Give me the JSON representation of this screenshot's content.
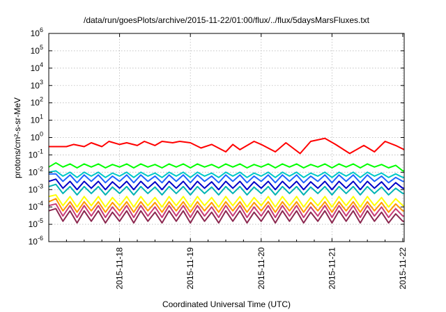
{
  "chart_data": {
    "type": "line",
    "title": "/data/run/goesPlots/archive/2015-11-22/01:00/flux/../flux/5daysMarsFluxes.txt",
    "xlabel": "Coordinated Universal Time (UTC)",
    "ylabel": "protons/cm²-s-sr-MeV",
    "y_scale": "log",
    "ylim": [
      1e-06,
      1000000.0
    ],
    "xlim": [
      "2015-11-17 00:00",
      "2015-11-22 00:30"
    ],
    "grid": true,
    "legend": "none",
    "y_ticks": [
      {
        "value": 1e-06,
        "base": "10",
        "exp": "-6"
      },
      {
        "value": 1e-05,
        "base": "10",
        "exp": "-5"
      },
      {
        "value": 0.0001,
        "base": "10",
        "exp": "-4"
      },
      {
        "value": 0.001,
        "base": "10",
        "exp": "-3"
      },
      {
        "value": 0.01,
        "base": "10",
        "exp": "-2"
      },
      {
        "value": 0.1,
        "base": "10",
        "exp": "-1"
      },
      {
        "value": 1.0,
        "base": "10",
        "exp": "0"
      },
      {
        "value": 10.0,
        "base": "10",
        "exp": "1"
      },
      {
        "value": 100.0,
        "base": "10",
        "exp": "2"
      },
      {
        "value": 1000.0,
        "base": "10",
        "exp": "3"
      },
      {
        "value": 10000.0,
        "base": "10",
        "exp": "4"
      },
      {
        "value": 100000.0,
        "base": "10",
        "exp": "5"
      },
      {
        "value": 1000000.0,
        "base": "10",
        "exp": "6"
      }
    ],
    "x_ticks": [
      {
        "label": "2015-11-18",
        "day": 1
      },
      {
        "label": "2015-11-19",
        "day": 2
      },
      {
        "label": "2015-11-20",
        "day": 3
      },
      {
        "label": "2015-11-21",
        "day": 4
      },
      {
        "label": "2015-11-22",
        "day": 5
      }
    ],
    "series": [
      {
        "color": "#ff0000",
        "x": [
          0,
          0.25,
          0.35,
          0.5,
          0.6,
          0.75,
          0.85,
          1.0,
          1.1,
          1.25,
          1.35,
          1.5,
          1.6,
          1.75,
          1.85,
          2.0,
          2.15,
          2.3,
          2.5,
          2.6,
          2.7,
          2.9,
          3.0,
          3.2,
          3.35,
          3.55,
          3.7,
          3.9,
          4.05,
          4.25,
          4.45,
          4.6,
          4.75,
          4.9,
          5.05
        ],
        "y": [
          0.3,
          0.3,
          0.4,
          0.3,
          0.5,
          0.3,
          0.6,
          0.4,
          0.5,
          0.35,
          0.6,
          0.35,
          0.6,
          0.5,
          0.6,
          0.5,
          0.25,
          0.4,
          0.15,
          0.4,
          0.2,
          0.6,
          0.4,
          0.15,
          0.5,
          0.12,
          0.6,
          0.9,
          0.4,
          0.12,
          0.35,
          0.15,
          0.6,
          0.35,
          0.2
        ]
      },
      {
        "color": "#00ff00",
        "x": [
          0,
          0.1,
          0.2,
          0.3,
          0.4,
          0.5,
          0.6,
          0.7,
          0.8,
          0.9,
          1.0,
          1.1,
          1.2,
          1.3,
          1.4,
          1.5,
          1.6,
          1.7,
          1.8,
          1.9,
          2.0,
          2.1,
          2.2,
          2.3,
          2.4,
          2.5,
          2.6,
          2.7,
          2.8,
          2.9,
          3.0,
          3.1,
          3.2,
          3.3,
          3.4,
          3.5,
          3.6,
          3.7,
          3.8,
          3.9,
          4.0,
          4.1,
          4.2,
          4.3,
          4.4,
          4.5,
          4.6,
          4.7,
          4.8,
          4.9,
          5.0,
          5.05
        ],
        "y": [
          0.02,
          0.035,
          0.02,
          0.03,
          0.018,
          0.03,
          0.02,
          0.03,
          0.018,
          0.028,
          0.02,
          0.03,
          0.018,
          0.03,
          0.02,
          0.028,
          0.018,
          0.03,
          0.02,
          0.03,
          0.018,
          0.03,
          0.02,
          0.028,
          0.018,
          0.03,
          0.02,
          0.03,
          0.018,
          0.028,
          0.02,
          0.03,
          0.018,
          0.03,
          0.02,
          0.03,
          0.018,
          0.028,
          0.02,
          0.03,
          0.018,
          0.03,
          0.02,
          0.03,
          0.018,
          0.03,
          0.02,
          0.028,
          0.018,
          0.025,
          0.012,
          0.012
        ]
      },
      {
        "color": "#00c8c8",
        "x": [
          0,
          0.1,
          0.2,
          0.3,
          0.4,
          0.5,
          0.6,
          0.7,
          0.8,
          0.9,
          1.0,
          1.1,
          1.2,
          1.3,
          1.4,
          1.5,
          1.6,
          1.7,
          1.8,
          1.9,
          2.0,
          2.1,
          2.2,
          2.3,
          2.4,
          2.5,
          2.6,
          2.7,
          2.8,
          2.9,
          3.0,
          3.1,
          3.2,
          3.3,
          3.4,
          3.5,
          3.6,
          3.7,
          3.8,
          3.9,
          4.0,
          4.1,
          4.2,
          4.3,
          4.4,
          4.5,
          4.6,
          4.7,
          4.8,
          4.9,
          5.0,
          5.05
        ],
        "y": [
          0.01,
          0.012,
          0.006,
          0.01,
          0.005,
          0.01,
          0.006,
          0.01,
          0.005,
          0.009,
          0.006,
          0.01,
          0.005,
          0.01,
          0.006,
          0.009,
          0.005,
          0.01,
          0.006,
          0.01,
          0.005,
          0.01,
          0.006,
          0.009,
          0.005,
          0.01,
          0.006,
          0.01,
          0.005,
          0.009,
          0.006,
          0.01,
          0.005,
          0.01,
          0.006,
          0.01,
          0.005,
          0.009,
          0.006,
          0.01,
          0.005,
          0.01,
          0.006,
          0.01,
          0.005,
          0.01,
          0.006,
          0.009,
          0.005,
          0.008,
          0.005,
          0.005
        ]
      },
      {
        "color": "#1e64ff",
        "x": [
          0,
          0.1,
          0.2,
          0.3,
          0.4,
          0.5,
          0.6,
          0.7,
          0.8,
          0.9,
          1.0,
          1.1,
          1.2,
          1.3,
          1.4,
          1.5,
          1.6,
          1.7,
          1.8,
          1.9,
          2.0,
          2.1,
          2.2,
          2.3,
          2.4,
          2.5,
          2.6,
          2.7,
          2.8,
          2.9,
          3.0,
          3.1,
          3.2,
          3.3,
          3.4,
          3.5,
          3.6,
          3.7,
          3.8,
          3.9,
          4.0,
          4.1,
          4.2,
          4.3,
          4.4,
          4.5,
          4.6,
          4.7,
          4.8,
          4.9,
          5.0,
          5.05
        ],
        "y": [
          0.008,
          0.008,
          0.003,
          0.007,
          0.0025,
          0.007,
          0.003,
          0.007,
          0.0025,
          0.006,
          0.003,
          0.007,
          0.0025,
          0.007,
          0.003,
          0.006,
          0.0025,
          0.007,
          0.003,
          0.007,
          0.0025,
          0.007,
          0.003,
          0.006,
          0.0025,
          0.007,
          0.003,
          0.007,
          0.0025,
          0.006,
          0.003,
          0.007,
          0.0025,
          0.007,
          0.003,
          0.007,
          0.0025,
          0.006,
          0.003,
          0.007,
          0.0025,
          0.007,
          0.003,
          0.007,
          0.0025,
          0.007,
          0.003,
          0.006,
          0.0025,
          0.005,
          0.003,
          0.003
        ]
      },
      {
        "color": "#0000c8",
        "x": [
          0,
          0.1,
          0.2,
          0.3,
          0.4,
          0.5,
          0.6,
          0.7,
          0.8,
          0.9,
          1.0,
          1.1,
          1.2,
          1.3,
          1.4,
          1.5,
          1.6,
          1.7,
          1.8,
          1.9,
          2.0,
          2.1,
          2.2,
          2.3,
          2.4,
          2.5,
          2.6,
          2.7,
          2.8,
          2.9,
          3.0,
          3.1,
          3.2,
          3.3,
          3.4,
          3.5,
          3.6,
          3.7,
          3.8,
          3.9,
          4.0,
          4.1,
          4.2,
          4.3,
          4.4,
          4.5,
          4.6,
          4.7,
          4.8,
          4.9,
          5.0,
          5.05
        ],
        "y": [
          0.003,
          0.004,
          0.0012,
          0.003,
          0.001,
          0.003,
          0.0012,
          0.003,
          0.001,
          0.0028,
          0.0012,
          0.003,
          0.001,
          0.003,
          0.0012,
          0.0028,
          0.001,
          0.003,
          0.0012,
          0.003,
          0.001,
          0.003,
          0.0012,
          0.0028,
          0.001,
          0.003,
          0.0012,
          0.003,
          0.001,
          0.0028,
          0.0012,
          0.003,
          0.001,
          0.003,
          0.0012,
          0.003,
          0.001,
          0.0028,
          0.0012,
          0.003,
          0.001,
          0.003,
          0.0012,
          0.003,
          0.001,
          0.003,
          0.0012,
          0.0028,
          0.001,
          0.0025,
          0.0012,
          0.0012
        ]
      },
      {
        "color": "#00b4b4",
        "x": [
          0,
          0.1,
          0.2,
          0.3,
          0.4,
          0.5,
          0.6,
          0.7,
          0.8,
          0.9,
          1.0,
          1.1,
          1.2,
          1.3,
          1.4,
          1.5,
          1.6,
          1.7,
          1.8,
          1.9,
          2.0,
          2.1,
          2.2,
          2.3,
          2.4,
          2.5,
          2.6,
          2.7,
          2.8,
          2.9,
          3.0,
          3.1,
          3.2,
          3.3,
          3.4,
          3.5,
          3.6,
          3.7,
          3.8,
          3.9,
          4.0,
          4.1,
          4.2,
          4.3,
          4.4,
          4.5,
          4.6,
          4.7,
          4.8,
          4.9,
          5.0,
          5.05
        ],
        "y": [
          0.0015,
          0.002,
          0.0006,
          0.0015,
          0.0005,
          0.0015,
          0.0006,
          0.0015,
          0.0005,
          0.0014,
          0.0006,
          0.0015,
          0.0005,
          0.0015,
          0.0006,
          0.0014,
          0.0005,
          0.0015,
          0.0006,
          0.0015,
          0.0005,
          0.0015,
          0.0006,
          0.0014,
          0.0005,
          0.0015,
          0.0006,
          0.0015,
          0.0005,
          0.0014,
          0.0006,
          0.0015,
          0.0005,
          0.0015,
          0.0006,
          0.0015,
          0.0005,
          0.0014,
          0.0006,
          0.0015,
          0.0005,
          0.0015,
          0.0006,
          0.0015,
          0.0005,
          0.0015,
          0.0006,
          0.0014,
          0.0005,
          0.0012,
          0.0006,
          0.0006
        ]
      },
      {
        "color": "#ffff00",
        "x": [
          0,
          0.1,
          0.2,
          0.3,
          0.4,
          0.5,
          0.6,
          0.7,
          0.8,
          0.9,
          1.0,
          1.1,
          1.2,
          1.3,
          1.4,
          1.5,
          1.6,
          1.7,
          1.8,
          1.9,
          2.0,
          2.1,
          2.2,
          2.3,
          2.4,
          2.5,
          2.6,
          2.7,
          2.8,
          2.9,
          3.0,
          3.1,
          3.2,
          3.3,
          3.4,
          3.5,
          3.6,
          3.7,
          3.8,
          3.9,
          4.0,
          4.1,
          4.2,
          4.3,
          4.4,
          4.5,
          4.6,
          4.7,
          4.8,
          4.9,
          5.0,
          5.05
        ],
        "y": [
          0.0004,
          0.0005,
          0.00012,
          0.0004,
          0.0001,
          0.0004,
          0.00012,
          0.0004,
          0.0001,
          0.00035,
          0.00012,
          0.0004,
          0.0001,
          0.0004,
          0.00012,
          0.00035,
          0.0001,
          0.0004,
          0.00012,
          0.0004,
          0.0001,
          0.0004,
          0.00012,
          0.00035,
          0.0001,
          0.0004,
          0.00012,
          0.0004,
          0.0001,
          0.00035,
          0.00012,
          0.0004,
          0.0001,
          0.0004,
          0.00012,
          0.0004,
          0.0001,
          0.00035,
          0.00012,
          0.0004,
          0.0001,
          0.0004,
          0.00012,
          0.0004,
          0.0001,
          0.0004,
          0.00012,
          0.00035,
          0.0001,
          0.0003,
          0.00012,
          0.00012
        ]
      },
      {
        "color": "#ff9600",
        "x": [
          0,
          0.1,
          0.2,
          0.3,
          0.4,
          0.5,
          0.6,
          0.7,
          0.8,
          0.9,
          1.0,
          1.1,
          1.2,
          1.3,
          1.4,
          1.5,
          1.6,
          1.7,
          1.8,
          1.9,
          2.0,
          2.1,
          2.2,
          2.3,
          2.4,
          2.5,
          2.6,
          2.7,
          2.8,
          2.9,
          3.0,
          3.1,
          3.2,
          3.3,
          3.4,
          3.5,
          3.6,
          3.7,
          3.8,
          3.9,
          4.0,
          4.1,
          4.2,
          4.3,
          4.4,
          4.5,
          4.6,
          4.7,
          4.8,
          4.9,
          5.0,
          5.05
        ],
        "y": [
          0.0002,
          0.0003,
          6e-05,
          0.0002,
          5e-05,
          0.0002,
          6e-05,
          0.0002,
          5e-05,
          0.00018,
          6e-05,
          0.0002,
          5e-05,
          0.0002,
          6e-05,
          0.00018,
          5e-05,
          0.0002,
          6e-05,
          0.0002,
          5e-05,
          0.0002,
          6e-05,
          0.00018,
          5e-05,
          0.0002,
          6e-05,
          0.0002,
          5e-05,
          0.00018,
          6e-05,
          0.0002,
          5e-05,
          0.0002,
          6e-05,
          0.0002,
          5e-05,
          0.00018,
          6e-05,
          0.0002,
          5e-05,
          0.0002,
          6e-05,
          0.0002,
          5e-05,
          0.0002,
          6e-05,
          0.00018,
          5e-05,
          0.00015,
          6e-05,
          6e-05
        ]
      },
      {
        "color": "#c83c78",
        "x": [
          0,
          0.1,
          0.2,
          0.3,
          0.4,
          0.5,
          0.6,
          0.7,
          0.8,
          0.9,
          1.0,
          1.1,
          1.2,
          1.3,
          1.4,
          1.5,
          1.6,
          1.7,
          1.8,
          1.9,
          2.0,
          2.1,
          2.2,
          2.3,
          2.4,
          2.5,
          2.6,
          2.7,
          2.8,
          2.9,
          3.0,
          3.1,
          3.2,
          3.3,
          3.4,
          3.5,
          3.6,
          3.7,
          3.8,
          3.9,
          4.0,
          4.1,
          4.2,
          4.3,
          4.4,
          4.5,
          4.6,
          4.7,
          4.8,
          4.9,
          5.0,
          5.05
        ],
        "y": [
          0.00012,
          0.00015,
          3e-05,
          0.00012,
          2.5e-05,
          0.00012,
          3e-05,
          0.00012,
          2.5e-05,
          0.0001,
          3e-05,
          0.00012,
          2.5e-05,
          0.00012,
          3e-05,
          0.0001,
          2.5e-05,
          0.00012,
          3e-05,
          0.00012,
          2.5e-05,
          0.00012,
          3e-05,
          0.0001,
          2.5e-05,
          0.00012,
          3e-05,
          0.00012,
          2.5e-05,
          0.0001,
          3e-05,
          0.00012,
          2.5e-05,
          0.00012,
          3e-05,
          0.00012,
          2.5e-05,
          0.0001,
          3e-05,
          0.00012,
          2.5e-05,
          0.00012,
          3e-05,
          0.00012,
          2.5e-05,
          0.00012,
          3e-05,
          0.0001,
          2.5e-05,
          8e-05,
          3e-05,
          3e-05
        ]
      },
      {
        "color": "#8c2850",
        "x": [
          0,
          0.1,
          0.2,
          0.3,
          0.4,
          0.5,
          0.6,
          0.7,
          0.8,
          0.9,
          1.0,
          1.1,
          1.2,
          1.3,
          1.4,
          1.5,
          1.6,
          1.7,
          1.8,
          1.9,
          2.0,
          2.1,
          2.2,
          2.3,
          2.4,
          2.5,
          2.6,
          2.7,
          2.8,
          2.9,
          3.0,
          3.1,
          3.2,
          3.3,
          3.4,
          3.5,
          3.6,
          3.7,
          3.8,
          3.9,
          4.0,
          4.1,
          4.2,
          4.3,
          4.4,
          4.5,
          4.6,
          4.7,
          4.8,
          4.9,
          5.0,
          5.05
        ],
        "y": [
          6e-05,
          8e-05,
          1.5e-05,
          6e-05,
          1.2e-05,
          6e-05,
          1.5e-05,
          6e-05,
          1.2e-05,
          5e-05,
          1.5e-05,
          6e-05,
          1.2e-05,
          6e-05,
          1.5e-05,
          5e-05,
          1.2e-05,
          6e-05,
          1.5e-05,
          6e-05,
          1.2e-05,
          6e-05,
          1.5e-05,
          5e-05,
          1.2e-05,
          6e-05,
          1.5e-05,
          6e-05,
          1.2e-05,
          5e-05,
          1.5e-05,
          6e-05,
          1.2e-05,
          6e-05,
          1.5e-05,
          6e-05,
          1.2e-05,
          5e-05,
          1.5e-05,
          6e-05,
          1.2e-05,
          6e-05,
          1.5e-05,
          6e-05,
          1.2e-05,
          6e-05,
          1.5e-05,
          5e-05,
          1.2e-05,
          4e-05,
          1.5e-05,
          1.5e-05
        ]
      }
    ]
  }
}
